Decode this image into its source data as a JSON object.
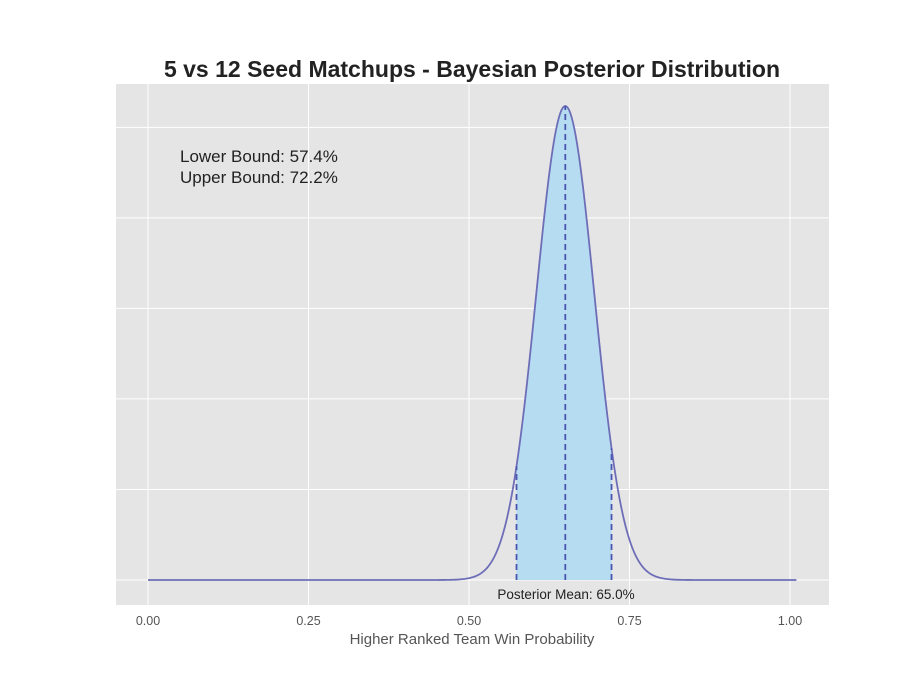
{
  "chart_data": {
    "type": "area",
    "title": "5 vs 12 Seed Matchups - Bayesian Posterior Distribution",
    "xlabel": "Higher Ranked Team Win Probability",
    "ylabel": "",
    "xlim": [
      -0.05,
      1.06
    ],
    "x_ticks": [
      0.0,
      0.25,
      0.5,
      0.75,
      1.0
    ],
    "x_tick_labels": [
      "0.00",
      "0.25",
      "0.50",
      "0.75",
      "1.00"
    ],
    "y_ticks_shown": false,
    "grid": true,
    "distribution": {
      "kind": "beta-like posterior density",
      "mean": 0.65,
      "sd": 0.045,
      "x_range": [
        0.0,
        1.01
      ]
    },
    "credible_interval": {
      "lower": 0.574,
      "upper": 0.722,
      "lower_label": "Lower Bound:  57.4%",
      "upper_label": "Upper Bound:  72.2%"
    },
    "mean_label": "Posterior Mean:  65.0%",
    "colors": {
      "background": "#e5e5e5",
      "grid": "#ffffff",
      "curve": "#6e6eb8",
      "fill": "#b6dcf2",
      "dashed": "#4a55b0"
    }
  }
}
